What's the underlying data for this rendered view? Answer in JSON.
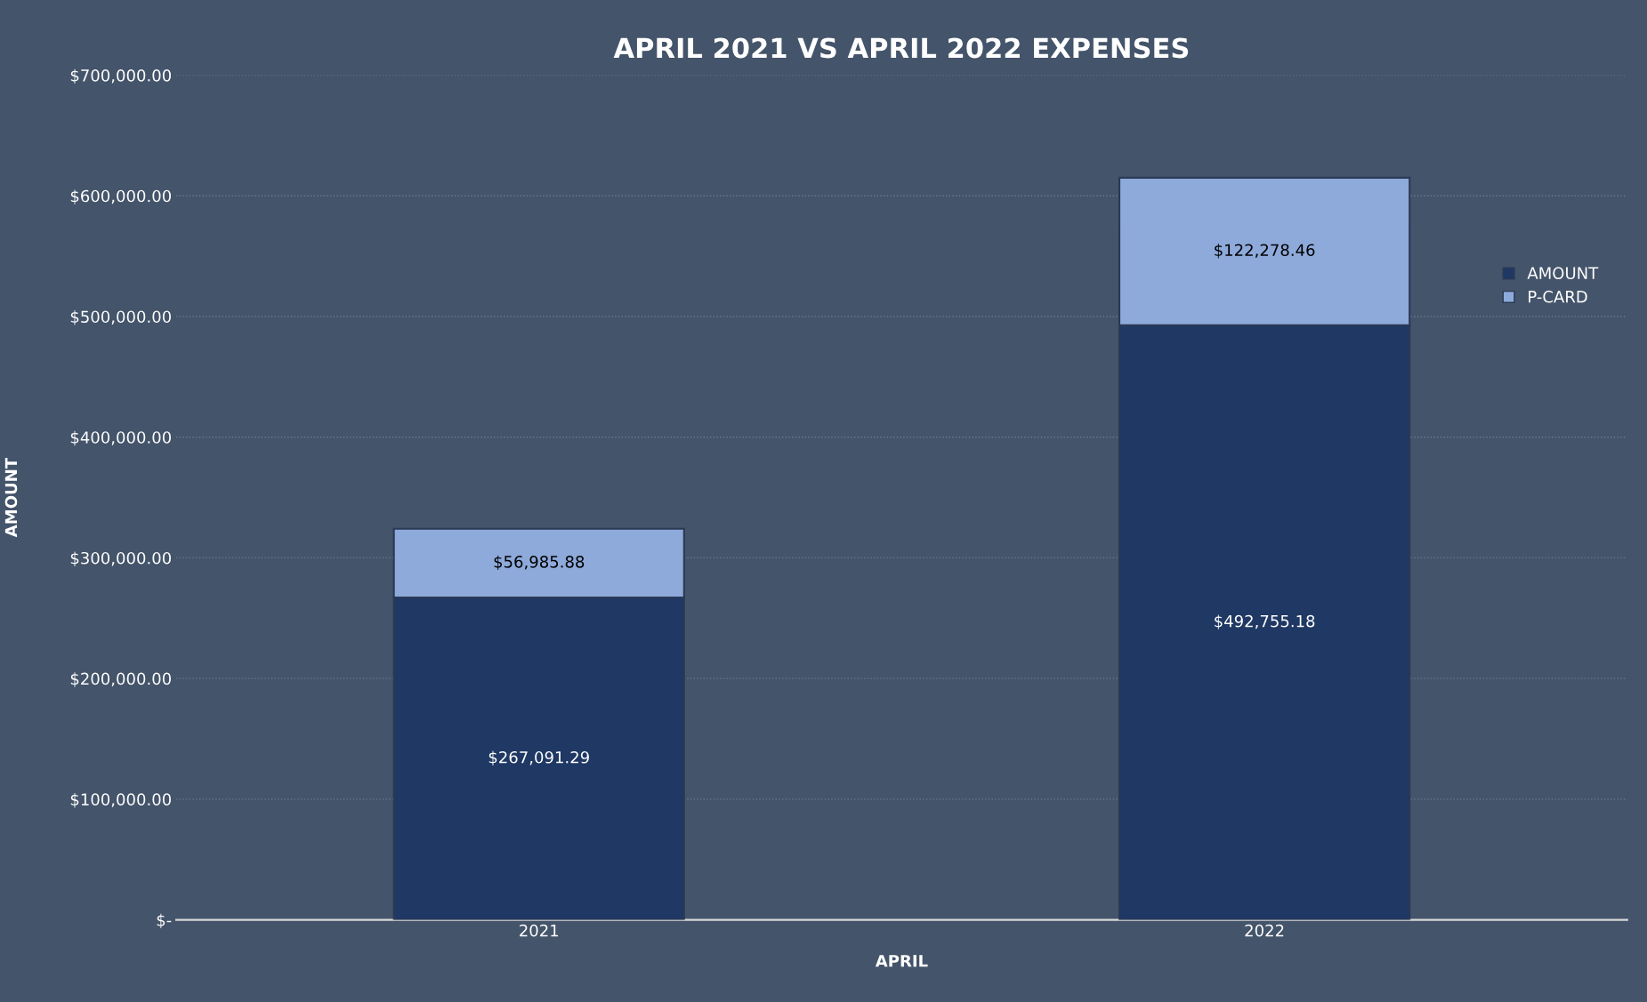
{
  "chart_data": {
    "type": "bar",
    "title": "APRIL 2021 VS APRIL 2022 EXPENSES",
    "xlabel": "APRIL",
    "ylabel": "AMOUNT",
    "categories": [
      "2021",
      "2022"
    ],
    "stacked": true,
    "series": [
      {
        "name": "AMOUNT",
        "color": "#1f3864",
        "values": [
          267091.29,
          492755.18
        ],
        "value_labels": [
          "$267,091.29",
          "$492,755.18"
        ]
      },
      {
        "name": "P-CARD",
        "color": "#8eaadb",
        "values": [
          56985.88,
          122278.46
        ],
        "value_labels": [
          "$56,985.88",
          "$122,278.46"
        ]
      }
    ],
    "ylim": [
      0,
      700000
    ],
    "yticks": [
      {
        "value": 0,
        "label": "$-"
      },
      {
        "value": 100000,
        "label": "$100,000.00"
      },
      {
        "value": 200000,
        "label": "$200,000.00"
      },
      {
        "value": 300000,
        "label": "$300,000.00"
      },
      {
        "value": 400000,
        "label": "$400,000.00"
      },
      {
        "value": 500000,
        "label": "$500,000.00"
      },
      {
        "value": 600000,
        "label": "$600,000.00"
      },
      {
        "value": 700000,
        "label": "$700,000.00"
      }
    ],
    "grid": "y",
    "legend": "right"
  }
}
